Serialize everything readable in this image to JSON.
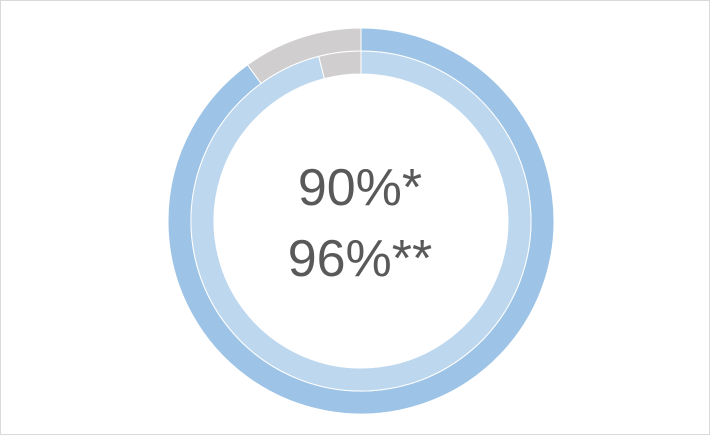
{
  "chart_data": {
    "type": "pie",
    "subtype": "doughnut",
    "series": [
      {
        "values": [
          90,
          10
        ]
      },
      {
        "values": [
          96,
          4
        ]
      }
    ],
    "center_labels": [
      "90%*",
      "96%**"
    ],
    "colors": {
      "outer_value": "#9dc3e6",
      "inner_value": "#bdd7ee",
      "remainder": "#d0cece",
      "background": "#ffffff",
      "border": "#d9d9d9",
      "text": "#595959"
    }
  }
}
